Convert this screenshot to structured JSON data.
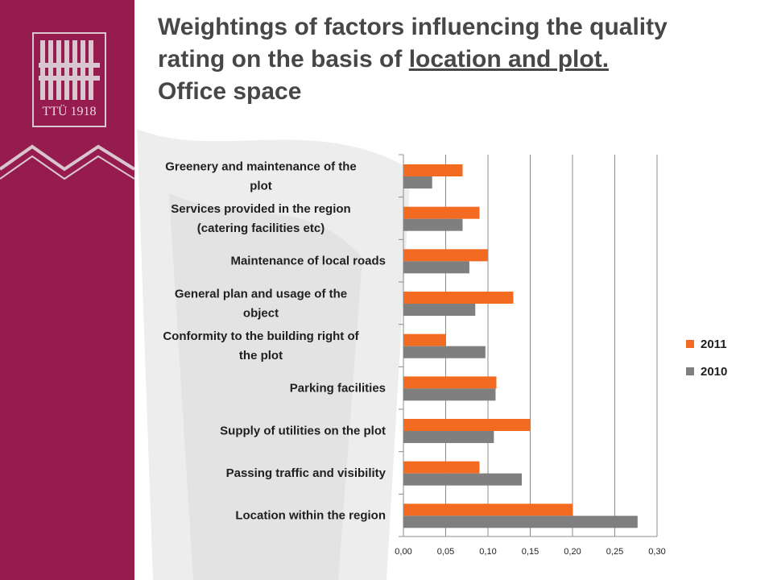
{
  "logo": {
    "text": "TTÜ 1918"
  },
  "title": {
    "line1": "Weightings of factors influencing the quality",
    "line2_prefix": "rating on the basis of ",
    "line2_underlined": "location and plot.",
    "line3": "Office space"
  },
  "colors": {
    "series_2011": "#f26b21",
    "series_2010": "#7f7f7f",
    "sidebar": "#961b4e"
  },
  "chart_data": {
    "type": "bar",
    "orientation": "horizontal",
    "categories": [
      "Greenery and maintenance of the plot",
      "Services provided in the region (catering facilities etc)",
      "Maintenance of local roads",
      "General plan and usage of the object",
      "Conformity to the building right of the plot",
      "Parking facilities",
      "Supply of utilities on the plot",
      "Passing traffic and visibility",
      "Location within the region"
    ],
    "category_lines": [
      [
        "Greenery and maintenance of the",
        "plot"
      ],
      [
        "Services provided in the region",
        "(catering facilities etc)"
      ],
      [
        "Maintenance of local roads"
      ],
      [
        "General plan and usage of the",
        "object"
      ],
      [
        "Conformity to the building right of",
        "the plot"
      ],
      [
        "Parking facilities"
      ],
      [
        "Supply of utilities on the plot"
      ],
      [
        "Passing traffic and visibility"
      ],
      [
        "Location within the region"
      ]
    ],
    "series": [
      {
        "name": "2011",
        "values": [
          0.07,
          0.09,
          0.1,
          0.13,
          0.05,
          0.11,
          0.15,
          0.09,
          0.2
        ]
      },
      {
        "name": "2010",
        "values": [
          0.034,
          0.07,
          0.078,
          0.085,
          0.097,
          0.109,
          0.107,
          0.14,
          0.277
        ]
      }
    ],
    "xlim": [
      0,
      0.3
    ],
    "x_ticks": [
      "0,00",
      "0,05",
      "0,10",
      "0,15",
      "0,20",
      "0,25",
      "0,30"
    ],
    "grid": true,
    "legend_position": "right",
    "legend_order": [
      "2011",
      "2010"
    ]
  }
}
